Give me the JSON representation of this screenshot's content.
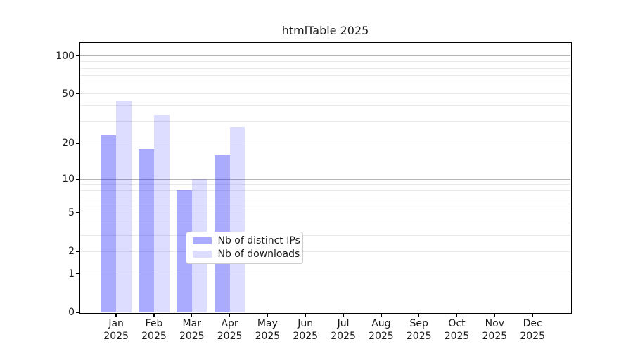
{
  "title": "htmlTable 2025",
  "chart_data": {
    "type": "bar",
    "title": "htmlTable 2025",
    "xlabel": "",
    "ylabel": "",
    "y_scale": "log10(value+1)",
    "ylim": [
      0,
      127
    ],
    "grid": "horizontal",
    "legend_position": "lower center",
    "categories": [
      "Jan 2025",
      "Feb 2025",
      "Mar 2025",
      "Apr 2025",
      "May 2025",
      "Jun 2025",
      "Jul 2025",
      "Aug 2025",
      "Sep 2025",
      "Oct 2025",
      "Nov 2025",
      "Dec 2025"
    ],
    "series": [
      {
        "name": "Nb of distinct IPs",
        "color": "#aaaaff",
        "values": [
          23,
          18,
          8,
          16,
          null,
          null,
          null,
          null,
          null,
          null,
          null,
          null
        ]
      },
      {
        "name": "Nb of downloads",
        "color": "#dedeff",
        "values": [
          44,
          34,
          10,
          27,
          null,
          null,
          null,
          null,
          null,
          null,
          null,
          null
        ]
      }
    ],
    "ytick_labels": [
      "0",
      "1",
      "2",
      "5",
      "10",
      "20",
      "50",
      "100"
    ],
    "ytick_values": [
      0,
      1,
      2,
      5,
      10,
      20,
      50,
      100
    ],
    "major_gridline_values": [
      1,
      10,
      100
    ],
    "minor_gridline_values": [
      2,
      3,
      4,
      5,
      6,
      7,
      8,
      9,
      20,
      30,
      40,
      50,
      60,
      70,
      80,
      90
    ]
  },
  "colors": {
    "bar_ips_fill": "rgba(0,0,255,0.335)",
    "bar_downloads_fill": "rgba(0,0,255,0.135)",
    "major_grid": "#b5b5b5",
    "minor_grid": "#e9e9e9",
    "spine": "#000000",
    "text": "#1a1a1a",
    "legend_border": "#cccccc"
  }
}
